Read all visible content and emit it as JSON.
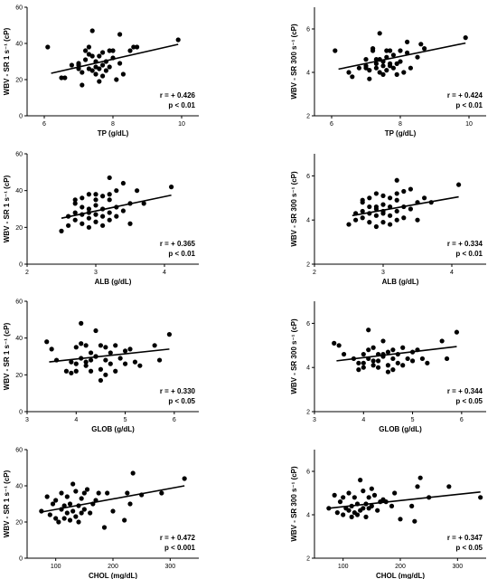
{
  "chart_data": [
    {
      "type": "scatter",
      "xlabel": "TP (g/dL)",
      "ylabel": "WBV - SR 1 s⁻¹ (cP)",
      "xlim": [
        5.5,
        10.5
      ],
      "ylim": [
        0,
        60
      ],
      "xticks": [
        6,
        8,
        10
      ],
      "yticks": [
        0,
        20,
        40,
        60
      ],
      "r": "r = + 0.426",
      "p": "p < 0.01",
      "fit": {
        "x": [
          6.2,
          9.9
        ],
        "y": [
          23.5,
          39.5
        ]
      },
      "points": {
        "x": [
          6.1,
          6.5,
          6.6,
          6.8,
          7.0,
          7.0,
          7.1,
          7.1,
          7.2,
          7.2,
          7.3,
          7.3,
          7.4,
          7.4,
          7.4,
          7.5,
          7.5,
          7.5,
          7.6,
          7.6,
          7.6,
          7.7,
          7.7,
          7.7,
          7.8,
          7.8,
          7.9,
          8.0,
          8.0,
          8.1,
          8.2,
          8.2,
          8.3,
          8.5,
          8.6,
          8.7,
          9.9,
          7.3,
          7.9,
          7.0
        ],
        "y": [
          38,
          21,
          21,
          28,
          26,
          29,
          17,
          24,
          31,
          36,
          38,
          26,
          47,
          25,
          33,
          30,
          23,
          27,
          19,
          26,
          33,
          28,
          22,
          35,
          25,
          30,
          36,
          36,
          32,
          20,
          45,
          29,
          23,
          36,
          38,
          38,
          42,
          34,
          27,
          28
        ]
      }
    },
    {
      "type": "scatter",
      "xlabel": "TP (g/dL)",
      "ylabel": "WBV - SR 300 s⁻¹ (cP)",
      "xlim": [
        5.5,
        10.5
      ],
      "ylim": [
        2,
        7
      ],
      "xticks": [
        6,
        8,
        10
      ],
      "yticks": [
        2,
        4,
        6
      ],
      "r": "r = + 0.424",
      "p": "p < 0.01",
      "fit": {
        "x": [
          6.2,
          9.9
        ],
        "y": [
          4.15,
          5.35
        ]
      },
      "points": {
        "x": [
          6.1,
          6.5,
          6.6,
          6.8,
          7.0,
          7.0,
          7.1,
          7.1,
          7.2,
          7.2,
          7.3,
          7.3,
          7.4,
          7.4,
          7.4,
          7.5,
          7.5,
          7.5,
          7.6,
          7.6,
          7.6,
          7.7,
          7.7,
          7.7,
          7.8,
          7.8,
          7.9,
          8.0,
          8.0,
          8.1,
          8.2,
          8.2,
          8.3,
          8.5,
          8.6,
          8.7,
          9.9,
          7.3,
          7.9,
          7.0
        ],
        "y": [
          5.0,
          4.0,
          3.8,
          4.2,
          4.3,
          4.6,
          3.7,
          4.1,
          5.0,
          5.1,
          4.4,
          4.2,
          5.8,
          4.0,
          4.6,
          4.5,
          3.9,
          4.3,
          4.1,
          4.7,
          5.0,
          4.4,
          4.3,
          5.0,
          4.2,
          4.8,
          3.9,
          5.0,
          4.5,
          4.0,
          5.4,
          4.9,
          4.2,
          4.7,
          5.3,
          5.1,
          5.6,
          4.6,
          4.4,
          4.2
        ]
      }
    },
    {
      "type": "scatter",
      "xlabel": "ALB (g/dL)",
      "ylabel": "WBV - SR 1 s⁻¹ (cP)",
      "xlim": [
        2,
        4.5
      ],
      "ylim": [
        0,
        60
      ],
      "xticks": [
        2,
        3,
        4
      ],
      "yticks": [
        0,
        20,
        40,
        60
      ],
      "r": "r = + 0.365",
      "p": "p < 0.01",
      "fit": {
        "x": [
          2.5,
          4.1
        ],
        "y": [
          25,
          37.5
        ]
      },
      "points": {
        "x": [
          2.5,
          2.6,
          2.6,
          2.7,
          2.7,
          2.7,
          2.8,
          2.8,
          2.8,
          2.8,
          2.9,
          2.9,
          2.9,
          2.9,
          3.0,
          3.0,
          3.0,
          3.0,
          3.1,
          3.1,
          3.1,
          3.1,
          3.2,
          3.2,
          3.2,
          3.2,
          3.3,
          3.3,
          3.3,
          3.4,
          3.4,
          3.5,
          3.5,
          3.6,
          3.7,
          4.1,
          2.7,
          3.0,
          3.2,
          2.9
        ],
        "y": [
          18,
          26,
          21,
          28,
          33,
          24,
          31,
          36,
          27,
          22,
          38,
          30,
          25,
          20,
          38,
          32,
          27,
          23,
          37,
          30,
          26,
          21,
          47,
          35,
          28,
          24,
          40,
          31,
          26,
          44,
          29,
          33,
          22,
          40,
          33,
          42,
          35,
          35,
          38,
          28
        ]
      }
    },
    {
      "type": "scatter",
      "xlabel": "ALB (g/dL)",
      "ylabel": "WBV - SR 300 s⁻¹ (cP)",
      "xlim": [
        2,
        4.5
      ],
      "ylim": [
        2,
        7
      ],
      "xticks": [
        2,
        3,
        4
      ],
      "yticks": [
        2,
        4,
        6
      ],
      "r": "r = + 0.334",
      "p": "p < 0.01",
      "fit": {
        "x": [
          2.55,
          4.1
        ],
        "y": [
          4.2,
          5.05
        ]
      },
      "points": {
        "x": [
          2.5,
          2.6,
          2.6,
          2.7,
          2.7,
          2.7,
          2.8,
          2.8,
          2.8,
          2.8,
          2.9,
          2.9,
          2.9,
          2.9,
          3.0,
          3.0,
          3.0,
          3.0,
          3.1,
          3.1,
          3.1,
          3.1,
          3.2,
          3.2,
          3.2,
          3.2,
          3.3,
          3.3,
          3.3,
          3.4,
          3.4,
          3.5,
          3.5,
          3.6,
          3.7,
          4.1,
          2.7,
          3.0,
          3.2,
          2.9
        ],
        "y": [
          3.8,
          4.3,
          4.0,
          4.4,
          4.8,
          4.1,
          4.6,
          5.0,
          4.3,
          3.9,
          5.2,
          4.5,
          4.2,
          3.7,
          5.1,
          4.7,
          4.3,
          3.9,
          5.0,
          4.6,
          4.2,
          3.8,
          5.8,
          4.9,
          4.4,
          4.0,
          5.3,
          4.6,
          4.1,
          5.4,
          4.5,
          4.8,
          4.0,
          5.0,
          4.8,
          5.6,
          4.9,
          4.4,
          5.2,
          4.6
        ]
      }
    },
    {
      "type": "scatter",
      "xlabel": "GLOB (g/dL)",
      "ylabel": "WBV - SR 1 s⁻¹ (cP)",
      "xlim": [
        3,
        6.5
      ],
      "ylim": [
        0,
        60
      ],
      "xticks": [
        3,
        4,
        5,
        6
      ],
      "yticks": [
        0,
        20,
        40,
        60
      ],
      "r": "r = + 0.330",
      "p": "p < 0.05",
      "fit": {
        "x": [
          3.45,
          5.9
        ],
        "y": [
          27,
          34
        ]
      },
      "points": {
        "x": [
          3.4,
          3.5,
          3.6,
          3.8,
          3.9,
          3.9,
          4.0,
          4.0,
          4.1,
          4.1,
          4.1,
          4.2,
          4.2,
          4.2,
          4.3,
          4.3,
          4.3,
          4.4,
          4.4,
          4.5,
          4.5,
          4.5,
          4.6,
          4.6,
          4.7,
          4.7,
          4.8,
          4.8,
          4.9,
          5.0,
          5.0,
          5.1,
          5.3,
          5.6,
          5.7,
          5.9,
          4.0,
          4.4,
          4.6,
          5.2
        ],
        "y": [
          38,
          34,
          28,
          22,
          27,
          21,
          35,
          22,
          48,
          37,
          29,
          27,
          36,
          25,
          32,
          22,
          28,
          44,
          30,
          17,
          23,
          36,
          35,
          28,
          26,
          32,
          36,
          22,
          29,
          26,
          33,
          34,
          25,
          36,
          28,
          42,
          26,
          30,
          20,
          27
        ]
      }
    },
    {
      "type": "scatter",
      "xlabel": "GLOB (g/dL)",
      "ylabel": "WBV - SR 300 s⁻¹ (cP)",
      "xlim": [
        3,
        6.5
      ],
      "ylim": [
        2,
        7
      ],
      "xticks": [
        3,
        4,
        5,
        6
      ],
      "yticks": [
        2,
        4,
        6
      ],
      "r": "r = + 0.344",
      "p": "p < 0.05",
      "fit": {
        "x": [
          3.45,
          5.9
        ],
        "y": [
          4.3,
          4.95
        ]
      },
      "points": {
        "x": [
          3.4,
          3.5,
          3.6,
          3.8,
          3.9,
          3.9,
          4.0,
          4.0,
          4.1,
          4.1,
          4.1,
          4.2,
          4.2,
          4.2,
          4.3,
          4.3,
          4.3,
          4.4,
          4.4,
          4.5,
          4.5,
          4.5,
          4.6,
          4.6,
          4.7,
          4.7,
          4.8,
          4.8,
          4.9,
          5.0,
          5.0,
          5.1,
          5.3,
          5.6,
          5.7,
          5.9,
          4.0,
          4.4,
          4.6,
          5.2
        ],
        "y": [
          5.1,
          5.0,
          4.6,
          4.4,
          4.2,
          3.9,
          4.6,
          4.0,
          5.7,
          4.8,
          4.4,
          4.1,
          4.9,
          4.3,
          4.6,
          4.0,
          4.3,
          5.2,
          4.5,
          3.8,
          4.1,
          4.7,
          4.8,
          4.4,
          4.2,
          4.6,
          4.9,
          4.1,
          4.4,
          4.3,
          4.7,
          4.8,
          4.2,
          5.2,
          4.4,
          5.6,
          4.2,
          4.6,
          3.9,
          4.4
        ]
      }
    },
    {
      "type": "scatter",
      "xlabel": "CHOL (mg/dL)",
      "ylabel": "WBV - SR 1 s⁻¹ (cP)",
      "xlim": [
        50,
        350
      ],
      "ylim": [
        0,
        60
      ],
      "xticks": [
        100,
        200,
        300
      ],
      "yticks": [
        0,
        20,
        40,
        60
      ],
      "r": "r = + 0.472",
      "p": "p < 0.001",
      "fit": {
        "x": [
          75,
          325
        ],
        "y": [
          25.5,
          40
        ]
      },
      "points": {
        "x": [
          75,
          85,
          90,
          95,
          100,
          100,
          105,
          110,
          110,
          115,
          115,
          120,
          120,
          125,
          125,
          130,
          130,
          135,
          135,
          140,
          140,
          145,
          150,
          150,
          155,
          160,
          165,
          170,
          175,
          185,
          190,
          200,
          220,
          225,
          230,
          235,
          250,
          285,
          325,
          145
        ],
        "y": [
          26,
          34,
          24,
          30,
          22,
          32,
          20,
          27,
          36,
          22,
          29,
          25,
          34,
          21,
          30,
          26,
          41,
          23,
          37,
          29,
          20,
          33,
          36,
          27,
          38,
          25,
          30,
          32,
          36,
          17,
          36,
          26,
          21,
          36,
          30,
          47,
          35,
          36,
          44,
          25
        ]
      }
    },
    {
      "type": "scatter",
      "xlabel": "CHOL (mg/dL)",
      "ylabel": "WBV - SR 300 s⁻¹ (cP)",
      "xlim": [
        50,
        350
      ],
      "ylim": [
        2,
        7
      ],
      "xticks": [
        100,
        200,
        300
      ],
      "yticks": [
        2,
        4,
        6
      ],
      "r": "r = + 0.347",
      "p": "p < 0.05",
      "fit": {
        "x": [
          75,
          340
        ],
        "y": [
          4.3,
          5.05
        ]
      },
      "points": {
        "x": [
          75,
          85,
          90,
          95,
          100,
          100,
          105,
          110,
          110,
          115,
          115,
          120,
          120,
          125,
          125,
          130,
          130,
          135,
          135,
          140,
          140,
          145,
          150,
          150,
          155,
          160,
          165,
          170,
          175,
          185,
          190,
          200,
          220,
          225,
          230,
          235,
          250,
          285,
          340,
          145
        ],
        "y": [
          4.3,
          4.9,
          4.1,
          4.6,
          4.0,
          4.8,
          4.3,
          4.2,
          5.0,
          3.9,
          4.4,
          4.1,
          4.8,
          4.0,
          4.5,
          4.2,
          5.6,
          4.3,
          5.1,
          4.5,
          3.9,
          4.8,
          5.2,
          4.4,
          4.9,
          4.2,
          4.6,
          4.7,
          4.6,
          4.4,
          5.0,
          3.8,
          4.4,
          3.7,
          5.3,
          5.7,
          4.8,
          5.3,
          4.8,
          4.3
        ]
      }
    }
  ]
}
